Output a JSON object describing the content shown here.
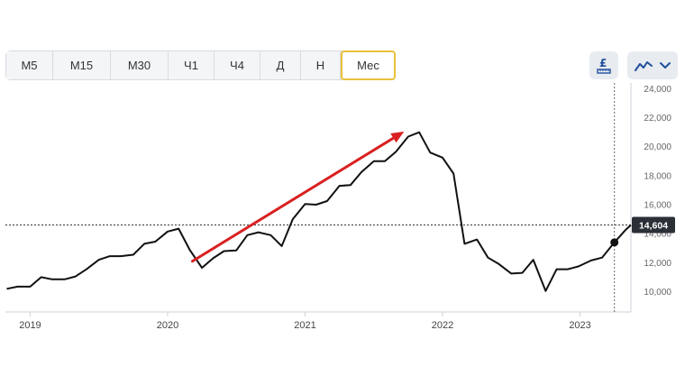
{
  "toolbar": {
    "timeframes": [
      {
        "label": "M5",
        "active": false
      },
      {
        "label": "M15",
        "active": false
      },
      {
        "label": "M30",
        "active": false
      },
      {
        "label": "Ч1",
        "active": false
      },
      {
        "label": "Ч4",
        "active": false
      },
      {
        "label": "Д",
        "active": false
      },
      {
        "label": "Н",
        "active": false
      },
      {
        "label": "Мес",
        "active": true
      }
    ],
    "indicator_icon": "currency-pound-ruler-icon",
    "chart_type_icon": "line-chart-icon",
    "dropdown_icon": "chevron-down-icon",
    "accent_color": "#e9c13a",
    "icon_color": "#1f4e9c"
  },
  "chart_data": {
    "type": "line",
    "title": "",
    "xlabel": "",
    "ylabel": "",
    "ylim": [
      8600,
      24400
    ],
    "xlim": [
      2018.82,
      2023.37
    ],
    "y_ticks": [
      {
        "value": 10000,
        "label": "10,000"
      },
      {
        "value": 12000,
        "label": "12,000"
      },
      {
        "value": 14000,
        "label": "14,000"
      },
      {
        "value": 16000,
        "label": "16,000"
      },
      {
        "value": 18000,
        "label": "18,000"
      },
      {
        "value": 20000,
        "label": "20,000"
      },
      {
        "value": 22000,
        "label": "22,000"
      },
      {
        "value": 24000,
        "label": "24,000"
      }
    ],
    "x_ticks": [
      {
        "value": 2019.0,
        "label": "2019"
      },
      {
        "value": 2020.0,
        "label": "2020"
      },
      {
        "value": 2021.0,
        "label": "2021"
      },
      {
        "value": 2022.0,
        "label": "2022"
      },
      {
        "value": 2023.0,
        "label": "2023"
      }
    ],
    "series": [
      {
        "color": "#111111",
        "points": [
          [
            2018.83,
            10200
          ],
          [
            2018.91,
            10350
          ],
          [
            2019.0,
            10350
          ],
          [
            2019.08,
            11000
          ],
          [
            2019.16,
            10850
          ],
          [
            2019.25,
            10850
          ],
          [
            2019.33,
            11050
          ],
          [
            2019.41,
            11550
          ],
          [
            2019.5,
            12200
          ],
          [
            2019.58,
            12450
          ],
          [
            2019.66,
            12450
          ],
          [
            2019.75,
            12550
          ],
          [
            2019.83,
            13300
          ],
          [
            2019.91,
            13450
          ],
          [
            2020.0,
            14150
          ],
          [
            2020.08,
            14350
          ],
          [
            2020.16,
            12900
          ],
          [
            2020.25,
            11650
          ],
          [
            2020.33,
            12300
          ],
          [
            2020.41,
            12800
          ],
          [
            2020.5,
            12850
          ],
          [
            2020.58,
            13900
          ],
          [
            2020.66,
            14100
          ],
          [
            2020.75,
            13900
          ],
          [
            2020.83,
            13150
          ],
          [
            2020.91,
            15000
          ],
          [
            2021.0,
            16050
          ],
          [
            2021.08,
            16000
          ],
          [
            2021.16,
            16250
          ],
          [
            2021.25,
            17300
          ],
          [
            2021.33,
            17350
          ],
          [
            2021.41,
            18250
          ],
          [
            2021.5,
            19000
          ],
          [
            2021.58,
            19000
          ],
          [
            2021.66,
            19650
          ],
          [
            2021.75,
            20700
          ],
          [
            2021.83,
            21000
          ],
          [
            2021.91,
            19600
          ],
          [
            2022.0,
            19250
          ],
          [
            2022.08,
            18150
          ],
          [
            2022.16,
            13300
          ],
          [
            2022.25,
            13600
          ],
          [
            2022.33,
            12350
          ],
          [
            2022.41,
            11900
          ],
          [
            2022.5,
            11250
          ],
          [
            2022.58,
            11300
          ],
          [
            2022.66,
            12200
          ],
          [
            2022.75,
            10050
          ],
          [
            2022.83,
            11550
          ],
          [
            2022.91,
            11550
          ],
          [
            2022.99,
            11750
          ],
          [
            2023.08,
            12150
          ],
          [
            2023.16,
            12350
          ],
          [
            2023.25,
            13400
          ],
          [
            2023.33,
            14250
          ],
          [
            2023.37,
            14604
          ]
        ]
      }
    ],
    "last_price": {
      "value": 14604,
      "label": "14,604"
    },
    "marker_point": [
      2023.25,
      13400
    ],
    "crosshair_x": 2023.25,
    "annotation_arrow": {
      "from": [
        2020.18,
        12100
      ],
      "to": [
        2021.72,
        21050
      ],
      "color": "#d92020"
    },
    "grid": false
  }
}
